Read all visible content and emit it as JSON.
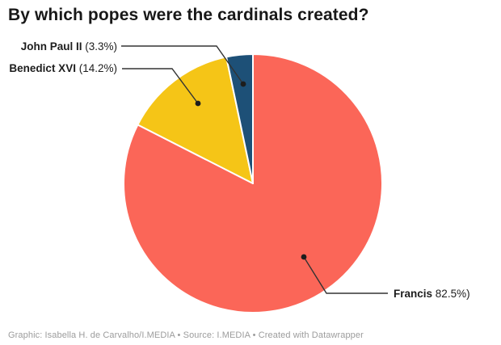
{
  "title": "By which popes were the cardinals created?",
  "footer": "Graphic: Isabella H. de Carvalho/I.MEDIA • Source: I.MEDIA • Created with Datawrapper",
  "chart_data": {
    "type": "pie",
    "title": "By which popes were the cardinals created?",
    "slices": [
      {
        "label": "Francis",
        "value": 82.5,
        "color": "#fb6658"
      },
      {
        "label": "Benedict XVI",
        "value": 14.2,
        "color": "#f5c517"
      },
      {
        "label": "John Paul II",
        "value": 3.3,
        "color": "#1d5077"
      }
    ],
    "start_angle_deg": 0,
    "direction": "clockwise",
    "slice_separator_color": "#ffffff",
    "legend_position": "none",
    "label_style": "external callouts with leader lines and dots",
    "connector_color": "#333333"
  },
  "callouts": {
    "john_paul_ii": {
      "name": "John Paul II",
      "value_text": "(3.3%)"
    },
    "benedict_xvi": {
      "name": "Benedict XVI",
      "value_text": "(14.2%)"
    },
    "francis": {
      "name": "Francis",
      "value_text": "82.5%)"
    }
  }
}
